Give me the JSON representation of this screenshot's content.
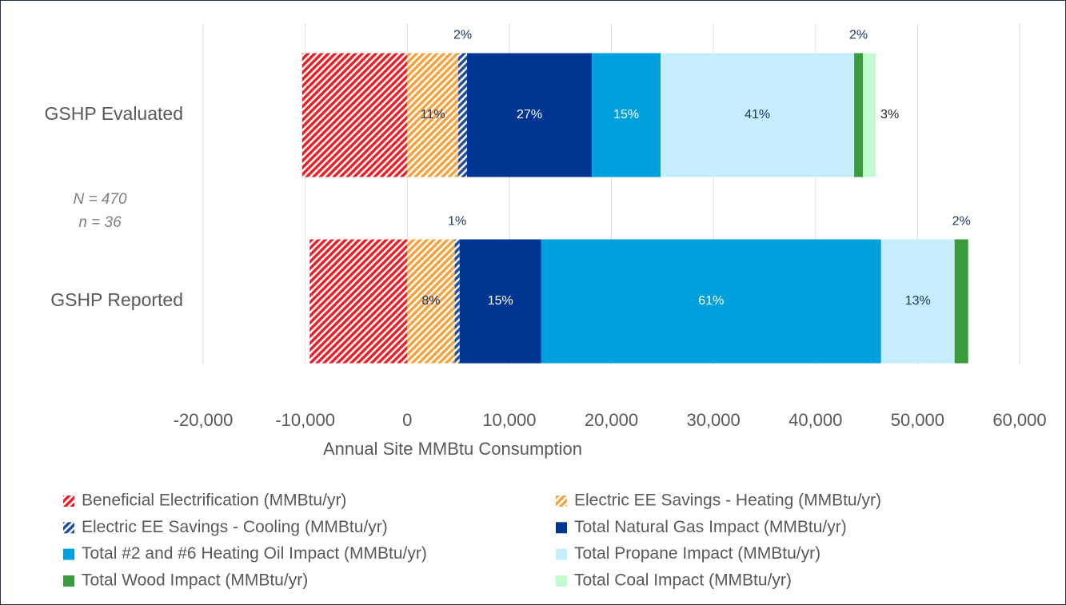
{
  "chart_data": {
    "type": "bar",
    "orientation": "horizontal",
    "categories": [
      "GSHP Evaluated",
      "GSHP Reported"
    ],
    "xlabel": "Annual Site MMBtu Consumption",
    "xlim": [
      -20000,
      60000
    ],
    "xticks": [
      {
        "value": -20000,
        "label": "-20,000"
      },
      {
        "value": -10000,
        "label": "-10,000"
      },
      0,
      {
        "value": 10000,
        "label": "10,000"
      },
      {
        "value": 20000,
        "label": "20,000"
      },
      {
        "value": 30000,
        "label": "30,000"
      },
      {
        "value": 40000,
        "label": "40,000"
      },
      {
        "value": 50000,
        "label": "50,000"
      },
      {
        "value": 60000,
        "label": "60,000"
      }
    ],
    "grid": true,
    "annotations": [
      "N = 470",
      "n = 36"
    ],
    "series": [
      {
        "name": "Beneficial Electrification (MMBtu/yr)",
        "color": "#e8202a",
        "hatched": true,
        "values": [
          -10300,
          -9560
        ],
        "percent_labels": [
          null,
          null
        ]
      },
      {
        "name": "Electric EE Savings - Heating (MMBtu/yr)",
        "color": "#f4a340",
        "hatched": true,
        "values": [
          5000,
          4650
        ],
        "percent_labels": [
          "11%",
          "8%"
        ]
      },
      {
        "name": "Electric EE Savings - Cooling (MMBtu/yr)",
        "color": "#1f4e9c",
        "hatched": true,
        "values": [
          860,
          480
        ],
        "percent_labels": [
          "2%",
          "1%"
        ]
      },
      {
        "name": "Total Natural Gas Impact (MMBtu/yr)",
        "color": "#003594",
        "hatched": false,
        "values": [
          12225,
          8000
        ],
        "percent_labels": [
          "27%",
          "15%"
        ]
      },
      {
        "name": "Total #2 and #6 Heating Oil Impact (MMBtu/yr)",
        "color": "#00a0dc",
        "hatched": false,
        "values": [
          6740,
          33300
        ],
        "percent_labels": [
          "15%",
          "61%"
        ]
      },
      {
        "name": "Total Propane Impact (MMBtu/yr)",
        "color": "#c5edfb",
        "hatched": false,
        "values": [
          18965,
          7200
        ],
        "percent_labels": [
          "41%",
          "13%"
        ]
      },
      {
        "name": "Total Wood Impact (MMBtu/yr)",
        "color": "#3a9a3c",
        "hatched": false,
        "values": [
          860,
          1330
        ],
        "percent_labels": [
          "2%",
          "2%"
        ]
      },
      {
        "name": "Total Coal Impact (MMBtu/yr)",
        "color": "#c3fbd0",
        "hatched": false,
        "values": [
          1250,
          0
        ],
        "percent_labels": [
          "3%",
          null
        ]
      }
    ]
  }
}
